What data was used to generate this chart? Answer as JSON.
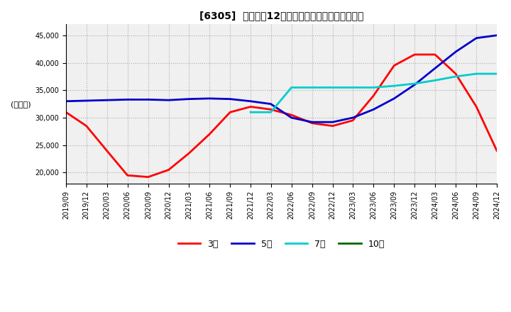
{
  "title": "[6305]  経常利益12か月移動合計の標準偏差の推移",
  "ylabel": "(百万円)",
  "ylim": [
    18000,
    47000
  ],
  "yticks": [
    20000,
    25000,
    30000,
    35000,
    40000,
    45000
  ],
  "legend": [
    "3年",
    "5年",
    "7年",
    "10年"
  ],
  "colors_lines": [
    "#ff0000",
    "#0000cc",
    "#00cccc",
    "#006600"
  ],
  "x_labels": [
    "2019/09",
    "2019/12",
    "2020/03",
    "2020/06",
    "2020/09",
    "2020/12",
    "2021/03",
    "2021/06",
    "2021/09",
    "2021/12",
    "2022/03",
    "2022/06",
    "2022/09",
    "2022/12",
    "2023/03",
    "2023/06",
    "2023/09",
    "2023/12",
    "2024/03",
    "2024/06",
    "2024/09",
    "2024/12"
  ],
  "s3_keys": [
    [
      "2019-09-01",
      31000
    ],
    [
      "2019-12-01",
      28500
    ],
    [
      "2020-03-01",
      24000
    ],
    [
      "2020-06-01",
      19500
    ],
    [
      "2020-09-01",
      19200
    ],
    [
      "2020-12-01",
      20500
    ],
    [
      "2021-03-01",
      23500
    ],
    [
      "2021-06-01",
      27000
    ],
    [
      "2021-09-01",
      31000
    ],
    [
      "2021-12-01",
      32000
    ],
    [
      "2022-03-01",
      31500
    ],
    [
      "2022-06-01",
      30500
    ],
    [
      "2022-09-01",
      29000
    ],
    [
      "2022-12-01",
      28500
    ],
    [
      "2023-03-01",
      29500
    ],
    [
      "2023-06-01",
      34000
    ],
    [
      "2023-09-01",
      39500
    ],
    [
      "2023-12-01",
      41500
    ],
    [
      "2024-03-01",
      41500
    ],
    [
      "2024-06-01",
      38000
    ],
    [
      "2024-09-01",
      32000
    ],
    [
      "2024-12-01",
      24000
    ]
  ],
  "s5_keys": [
    [
      "2019-09-01",
      33000
    ],
    [
      "2019-12-01",
      33100
    ],
    [
      "2020-03-01",
      33200
    ],
    [
      "2020-06-01",
      33300
    ],
    [
      "2020-09-01",
      33300
    ],
    [
      "2020-12-01",
      33200
    ],
    [
      "2021-03-01",
      33400
    ],
    [
      "2021-06-01",
      33500
    ],
    [
      "2021-09-01",
      33400
    ],
    [
      "2021-12-01",
      33000
    ],
    [
      "2022-03-01",
      32500
    ],
    [
      "2022-06-01",
      30000
    ],
    [
      "2022-09-01",
      29200
    ],
    [
      "2022-12-01",
      29200
    ],
    [
      "2023-03-01",
      30000
    ],
    [
      "2023-06-01",
      31500
    ],
    [
      "2023-09-01",
      33500
    ],
    [
      "2023-12-01",
      36000
    ],
    [
      "2024-03-01",
      39000
    ],
    [
      "2024-06-01",
      42000
    ],
    [
      "2024-09-01",
      44500
    ],
    [
      "2024-12-01",
      45000
    ]
  ],
  "s7_keys": [
    [
      "2021-12-01",
      31000
    ],
    [
      "2022-03-01",
      31000
    ],
    [
      "2022-06-01",
      35500
    ],
    [
      "2022-09-01",
      35500
    ],
    [
      "2022-12-01",
      35500
    ],
    [
      "2023-03-01",
      35500
    ],
    [
      "2023-06-01",
      35500
    ],
    [
      "2023-09-01",
      35800
    ],
    [
      "2023-12-01",
      36200
    ],
    [
      "2024-03-01",
      36800
    ],
    [
      "2024-06-01",
      37500
    ],
    [
      "2024-09-01",
      38000
    ],
    [
      "2024-12-01",
      38000
    ]
  ],
  "background_color": "#f5f5f5"
}
